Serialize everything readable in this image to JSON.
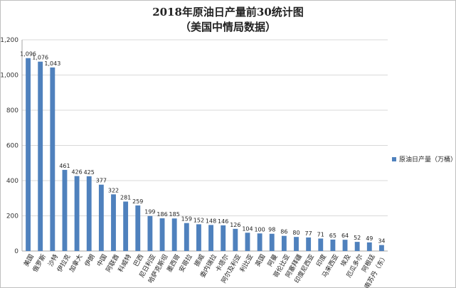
{
  "chart_data": {
    "type": "bar",
    "title": "2018年原油日产量前30统计图",
    "subtitle": "（美国中情局数据）",
    "series_name": "原油日产量（万桶）",
    "color": "#4f81bd",
    "ylim": [
      0,
      1200
    ],
    "yticks": [
      "0",
      "200",
      "400",
      "600",
      "800",
      "1,000",
      "1,200"
    ],
    "ytick_values": [
      0,
      200,
      400,
      600,
      800,
      1000,
      1200
    ],
    "grid": true,
    "legend_position": "right",
    "categories": [
      "美国",
      "俄罗斯",
      "沙特",
      "伊拉克",
      "加拿大",
      "伊朗",
      "中国",
      "阿联酋",
      "科威特",
      "巴西",
      "尼日利亚",
      "哈萨克斯坦",
      "墨西哥",
      "安哥拉",
      "挪威",
      "委内瑞拉",
      "卡塔尔",
      "阿尔及利亚",
      "利比亚",
      "英国",
      "阿曼",
      "哥伦比亚",
      "阿塞拜疆",
      "印度尼西亚",
      "印度",
      "马来西亚",
      "埃及",
      "厄瓜多尔",
      "阿根廷",
      "南苏丹（东）"
    ],
    "values": [
      1096,
      1076,
      1043,
      461,
      426,
      425,
      377,
      322,
      281,
      259,
      199,
      186,
      185,
      159,
      152,
      148,
      146,
      126,
      104,
      100,
      98,
      86,
      80,
      77,
      71,
      65,
      64,
      52,
      49,
      34
    ],
    "value_labels": [
      "1,096",
      "1,076",
      "1,043",
      "461",
      "426",
      "425",
      "377",
      "322",
      "281",
      "259",
      "199",
      "186",
      "185",
      "159",
      "152",
      "148",
      "146",
      "126",
      "104",
      "100",
      "98",
      "86",
      "80",
      "77",
      "71",
      "65",
      "64",
      "52",
      "49",
      "34"
    ]
  }
}
